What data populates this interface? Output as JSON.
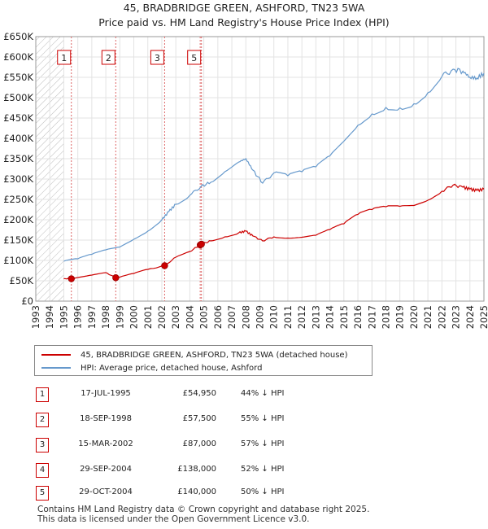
{
  "title_line1": "45, BRADBRIDGE GREEN, ASHFORD, TN23 5WA",
  "title_line2": "Price paid vs. HM Land Registry's House Price Index (HPI)",
  "chart_data": {
    "type": "line",
    "xlim": [
      1993,
      2025
    ],
    "ylim": [
      0,
      650000
    ],
    "y_ticks": [
      0,
      50000,
      100000,
      150000,
      200000,
      250000,
      300000,
      350000,
      400000,
      450000,
      500000,
      550000,
      600000,
      650000
    ],
    "y_tick_labels": [
      "£0",
      "£50K",
      "£100K",
      "£150K",
      "£200K",
      "£250K",
      "£300K",
      "£350K",
      "£400K",
      "£450K",
      "£500K",
      "£550K",
      "£600K",
      "£650K"
    ],
    "x_ticks": [
      1993,
      1994,
      1995,
      1996,
      1997,
      1998,
      1999,
      2000,
      2001,
      2002,
      2003,
      2004,
      2005,
      2006,
      2007,
      2008,
      2009,
      2010,
      2011,
      2012,
      2013,
      2014,
      2015,
      2016,
      2017,
      2018,
      2019,
      2020,
      2021,
      2022,
      2023,
      2024,
      2025
    ],
    "x_tick_labels": [
      "1993",
      "1994",
      "1995",
      "1996",
      "1997",
      "1998",
      "1999",
      "2000",
      "2001",
      "2002",
      "2003",
      "2004",
      "2005",
      "2006",
      "2007",
      "2008",
      "2009",
      "2010",
      "2011",
      "2012",
      "2013",
      "2014",
      "2015",
      "2016",
      "2017",
      "2018",
      "2019",
      "2020",
      "2021",
      "2022",
      "2023",
      "2024",
      "2025"
    ],
    "hatched_region": [
      1993,
      1995.0
    ],
    "series": [
      {
        "name": "45, BRADBRIDGE GREEN, ASHFORD, TN23 5WA (detached house)",
        "color": "#cc0000",
        "x": [
          1995.0,
          1995.54,
          1996.0,
          1997.0,
          1998.0,
          1998.71,
          1999.0,
          2000.0,
          2001.0,
          2002.2,
          2003.0,
          2004.0,
          2004.74,
          2004.83,
          2005.5,
          2006.5,
          2007.5,
          2008.0,
          2008.5,
          2009.2,
          2010.0,
          2011.0,
          2012.0,
          2013.0,
          2014.0,
          2015.0,
          2016.0,
          2017.0,
          2018.0,
          2019.0,
          2020.0,
          2021.0,
          2022.0,
          2022.8,
          2023.5,
          2024.0,
          2024.5,
          2025.0
        ],
        "y": [
          55000,
          54950,
          58000,
          64000,
          70000,
          57500,
          59000,
          68000,
          78000,
          87000,
          108000,
          122000,
          138000,
          140000,
          148000,
          158000,
          168000,
          172000,
          160000,
          148000,
          158000,
          155000,
          157000,
          162000,
          176000,
          190000,
          213000,
          225000,
          232000,
          233000,
          235000,
          248000,
          270000,
          285000,
          280000,
          275000,
          272000,
          275000
        ]
      },
      {
        "name": "HPI: Average price, detached house, Ashford",
        "color": "#6699cc",
        "x": [
          1995.0,
          1996.0,
          1997.0,
          1998.0,
          1999.0,
          2000.0,
          2001.0,
          2002.0,
          2002.5,
          2003.0,
          2004.0,
          2004.8,
          2005.5,
          2006.5,
          2007.5,
          2008.0,
          2008.5,
          2009.2,
          2010.0,
          2011.0,
          2012.0,
          2013.0,
          2014.0,
          2015.0,
          2016.0,
          2017.0,
          2018.0,
          2019.0,
          2020.0,
          2021.0,
          2022.0,
          2022.8,
          2023.5,
          2024.0,
          2024.5,
          2025.0
        ],
        "y": [
          98000,
          104000,
          115000,
          126000,
          133000,
          152000,
          172000,
          200000,
          220000,
          238000,
          260000,
          282000,
          292000,
          318000,
          342000,
          350000,
          322000,
          290000,
          315000,
          308000,
          318000,
          330000,
          357000,
          393000,
          432000,
          460000,
          476000,
          475000,
          485000,
          512000,
          552000,
          570000,
          565000,
          550000,
          548000,
          560000
        ]
      }
    ],
    "sales": [
      {
        "label": "1",
        "x": 1995.54,
        "price": 54950
      },
      {
        "label": "2",
        "x": 1998.71,
        "price": 57500
      },
      {
        "label": "3",
        "x": 2002.2,
        "price": 87000
      },
      {
        "label": "4",
        "x": 2004.74,
        "price": 138000
      },
      {
        "label": "5",
        "x": 2004.83,
        "price": 140000
      }
    ],
    "marker_labels_shown": [
      "1",
      "2",
      "3",
      "5"
    ]
  },
  "legend": {
    "property": "45, BRADBRIDGE GREEN, ASHFORD, TN23 5WA (detached house)",
    "hpi": "HPI: Average price, detached house, Ashford",
    "property_color": "#cc0000",
    "hpi_color": "#6699cc"
  },
  "sales_table": [
    {
      "num": "1",
      "date": "17-JUL-1995",
      "price": "£54,950",
      "pct": "44% ↓ HPI"
    },
    {
      "num": "2",
      "date": "18-SEP-1998",
      "price": "£57,500",
      "pct": "55% ↓ HPI"
    },
    {
      "num": "3",
      "date": "15-MAR-2002",
      "price": "£87,000",
      "pct": "57% ↓ HPI"
    },
    {
      "num": "4",
      "date": "29-SEP-2004",
      "price": "£138,000",
      "pct": "52% ↓ HPI"
    },
    {
      "num": "5",
      "date": "29-OCT-2004",
      "price": "£140,000",
      "pct": "50% ↓ HPI"
    }
  ],
  "footer_line1": "Contains HM Land Registry data © Crown copyright and database right 2025.",
  "footer_line2": "This data is licensed under the Open Government Licence v3.0."
}
